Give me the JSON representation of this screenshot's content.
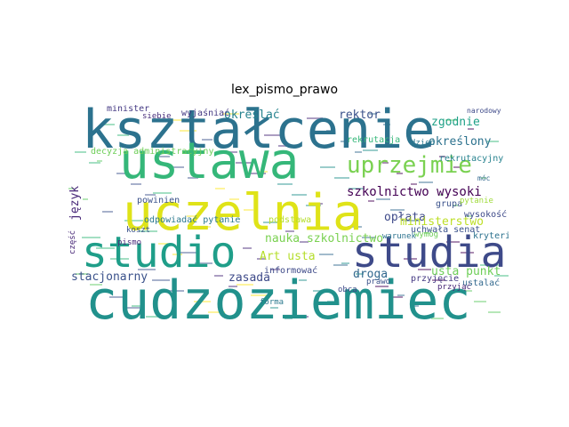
{
  "chart_data": {
    "type": "wordcloud",
    "title": "lex_pismo_prawo",
    "words": [
      {
        "text": "kształcenie",
        "color": "#2c728e"
      },
      {
        "text": "ustawa",
        "color": "#35b779"
      },
      {
        "text": "uczelnia",
        "color": "#dfe318"
      },
      {
        "text": "cudzoziemiec",
        "color": "#21918c"
      },
      {
        "text": "studio",
        "color": "#1f9e89"
      },
      {
        "text": "studia",
        "color": "#3e4a89"
      },
      {
        "text": "uprzejmie",
        "color": "#7ad151"
      },
      {
        "text": "szkolnictwo wysoki",
        "color": "#440154"
      },
      {
        "text": "nauka szkolnictwo",
        "color": "#7ad151"
      },
      {
        "text": "stacjonarny",
        "color": "#3b528b"
      },
      {
        "text": "rektor",
        "color": "#3b528b"
      },
      {
        "text": "określać",
        "color": "#26828e"
      },
      {
        "text": "zgodnie",
        "color": "#1fa187"
      },
      {
        "text": "określony",
        "color": "#2c728e"
      },
      {
        "text": "opłata",
        "color": "#3e4a89"
      },
      {
        "text": "język",
        "color": "#482878"
      },
      {
        "text": "ministerstwo",
        "color": "#bddf26"
      },
      {
        "text": "droga",
        "color": "#31688e"
      },
      {
        "text": "usta punkt",
        "color": "#6ece58"
      },
      {
        "text": "Art usta",
        "color": "#b5de2b"
      },
      {
        "text": "zasada",
        "color": "#3e4a89"
      },
      {
        "text": "odpowiadać pytanie",
        "color": "#2a788e"
      },
      {
        "text": "decyzja administracyjny",
        "color": "#6ece58"
      },
      {
        "text": "wyjaśniać",
        "color": "#443983"
      },
      {
        "text": "powinien",
        "color": "#3b528b"
      },
      {
        "text": "rekrutacja",
        "color": "#35b779"
      },
      {
        "text": "rekrutacyjny",
        "color": "#26828e"
      },
      {
        "text": "podstawa",
        "color": "#b5de2b"
      },
      {
        "text": "informować",
        "color": "#3e4a89"
      },
      {
        "text": "minister",
        "color": "#443983"
      },
      {
        "text": "siebie",
        "color": "#472d7b"
      },
      {
        "text": "grupa",
        "color": "#3b528b"
      },
      {
        "text": "wysokość",
        "color": "#3e4a89"
      },
      {
        "text": "przyjęcie",
        "color": "#443983"
      },
      {
        "text": "uchwała senat",
        "color": "#3b528b"
      },
      {
        "text": "kryterium",
        "color": "#2c728e"
      },
      {
        "text": "ustalać",
        "color": "#31688e"
      },
      {
        "text": "wymóg",
        "color": "#6ece58"
      },
      {
        "text": "pismo",
        "color": "#482878"
      },
      {
        "text": "koszt",
        "color": "#3b528b"
      },
      {
        "text": "forma",
        "color": "#2a788e"
      },
      {
        "text": "obca",
        "color": "#3e4a89"
      },
      {
        "text": "pytanie",
        "color": "#9fda3a"
      },
      {
        "text": "narodowy",
        "color": "#3e4a89"
      },
      {
        "text": "warunek",
        "color": "#2c728e"
      },
      {
        "text": "część",
        "color": "#482878"
      },
      {
        "text": "prawo",
        "color": "#3b528b"
      },
      {
        "text": "móc",
        "color": "#31688e"
      },
      {
        "text": "dzień",
        "color": "#2a788e"
      },
      {
        "text": "przyjąć",
        "color": "#482878"
      }
    ]
  }
}
